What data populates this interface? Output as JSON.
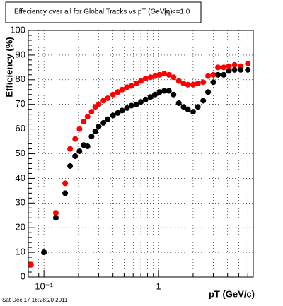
{
  "chart_data": {
    "type": "scatter",
    "title": "Effeciency over all for Global Tracks vs pT (GeV/c)",
    "annotation": "|η|<=1.0",
    "timestamp": "Sat Dec 17 16:28:20 2011",
    "x_label": "pT (GeV/c)",
    "y_label": "Efficiency (%)",
    "x": [
      0.077,
      0.1,
      0.127,
      0.153,
      0.169,
      0.187,
      0.204,
      0.222,
      0.24,
      0.26,
      0.28,
      0.3,
      0.33,
      0.36,
      0.4,
      0.44,
      0.48,
      0.53,
      0.58,
      0.64,
      0.7,
      0.77,
      0.85,
      0.93,
      1.02,
      1.12,
      1.23,
      1.35,
      1.5,
      1.65,
      1.8,
      2.0,
      2.2,
      2.45,
      2.7,
      3.0,
      3.3,
      3.7,
      4.1,
      4.6,
      5.2,
      6.0
    ],
    "series": [
      {
        "name": "red",
        "color": "#ff0000",
        "values": [
          5,
          10,
          26,
          38,
          52,
          56,
          60,
          63,
          65,
          67,
          69,
          70,
          71.5,
          72.5,
          74,
          75,
          76,
          77,
          77.5,
          78.5,
          79.5,
          80.5,
          81,
          81.5,
          82,
          82.5,
          82,
          81,
          79.5,
          78.5,
          78,
          78,
          78.5,
          79,
          81.5,
          82,
          85,
          85,
          85.5,
          86,
          85.5,
          86.5
        ]
      },
      {
        "name": "black",
        "color": "#000000",
        "values": [
          null,
          10,
          24,
          34,
          45,
          49,
          51,
          53.5,
          53,
          57,
          59,
          61,
          62.5,
          64,
          65.5,
          66.5,
          67.5,
          68.5,
          69.5,
          70,
          71,
          72,
          73,
          74,
          75,
          75.5,
          75.5,
          74,
          70.5,
          69,
          68,
          67,
          69,
          71.5,
          75,
          79,
          82,
          82,
          83.5,
          84,
          84,
          84
        ]
      }
    ],
    "log_x": true,
    "xlim": [
      0.073,
      6.7
    ],
    "xticks": [
      {
        "value": 0.1,
        "label": "10⁻¹"
      },
      1
    ],
    "ylim": [
      0,
      100
    ],
    "yticks": [
      0,
      10,
      20,
      30,
      40,
      50,
      60,
      70,
      80,
      90,
      100
    ],
    "grid": true
  }
}
